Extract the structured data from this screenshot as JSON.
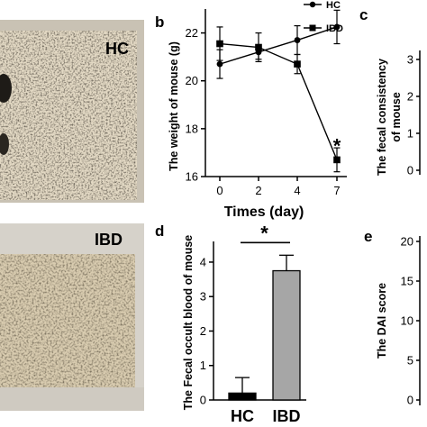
{
  "photos": [
    {
      "label": "HC"
    },
    {
      "label": "IBD"
    }
  ],
  "panels": {
    "b": {
      "letter": "b"
    },
    "c": {
      "letter": "c",
      "ylabel_line1": "The fecal consistency",
      "ylabel_line2": "of mouse"
    },
    "d": {
      "letter": "d"
    },
    "e": {
      "letter": "e",
      "ylabel": "The DAI score"
    }
  },
  "chart_data": [
    {
      "panel": "b",
      "type": "line",
      "xlabel": "Times (day)",
      "ylabel": "The weight of mouse (g)",
      "categories": [
        "0",
        "2",
        "4",
        "7"
      ],
      "ylim": [
        16,
        23
      ],
      "yticks": [
        16,
        18,
        20,
        22
      ],
      "series": [
        {
          "name": "HC",
          "marker": "circle",
          "values": [
            20.7,
            21.2,
            21.7,
            22.25
          ],
          "errors": [
            0.6,
            0.3,
            0.6,
            0.7
          ]
        },
        {
          "name": "IBD",
          "marker": "square",
          "values": [
            21.55,
            21.4,
            20.7,
            16.7
          ],
          "errors": [
            0.7,
            0.6,
            0.4,
            0.5
          ]
        }
      ],
      "annotations": [
        {
          "text": "*",
          "category": "7"
        }
      ],
      "legend": "top-right"
    },
    {
      "panel": "c",
      "type": "bar",
      "yticks_visible": [
        "3",
        "2",
        "1",
        "0"
      ]
    },
    {
      "panel": "d",
      "type": "bar",
      "ylabel": "The Fecal occult blood of mouse",
      "categories": [
        "HC",
        "IBD"
      ],
      "values": [
        0.2,
        3.75
      ],
      "errors": [
        0.45,
        0.45
      ],
      "colors": [
        "#000000",
        "#a6a6a6"
      ],
      "ylim": [
        0,
        4.6
      ],
      "yticks": [
        0,
        1,
        2,
        3,
        4
      ],
      "annotations": [
        {
          "text": "*"
        }
      ]
    },
    {
      "panel": "e",
      "type": "bar",
      "yticks_visible": [
        "20",
        "15",
        "10",
        "5",
        "0"
      ]
    }
  ]
}
